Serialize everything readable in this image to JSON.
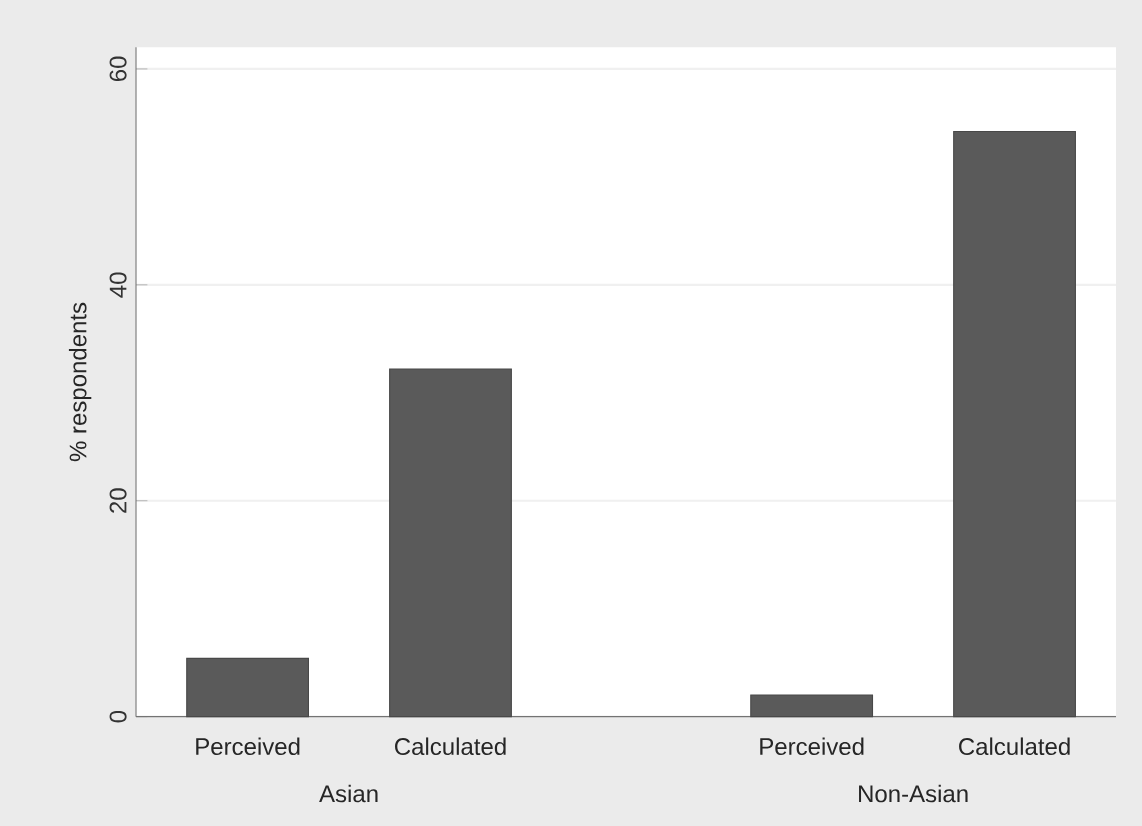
{
  "chart_data": {
    "type": "bar",
    "categories": [
      "Perceived",
      "Calculated",
      "Perceived",
      "Calculated"
    ],
    "values": [
      5.4,
      32.2,
      2.0,
      54.2
    ],
    "color": "#5a5a5a",
    "ylabel": "% respondents",
    "annotations": [
      "Asian",
      "Non-Asian"
    ],
    "ylim": [
      0,
      62
    ],
    "yticks": [
      0,
      20,
      40,
      60
    ],
    "grid": "y"
  }
}
